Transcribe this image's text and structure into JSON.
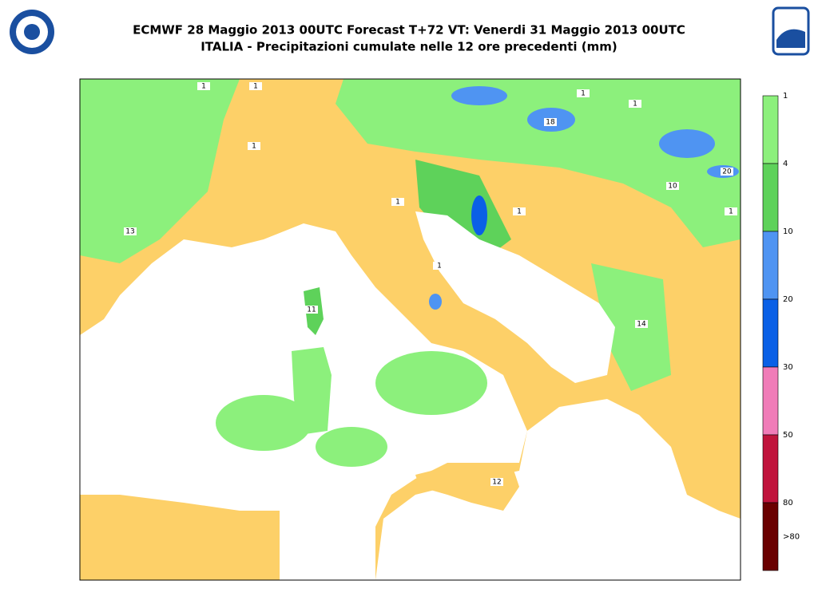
{
  "header": {
    "title": "ECMWF 28 Maggio 2013 00UTC Forecast T+72 VT: Venerdi 31 Maggio 2013 00UTC",
    "subtitle": "ITALIA - Precipitazioni cumulate nelle 12 ore precedenti (mm)"
  },
  "map": {
    "contour_labels": [
      "1",
      "1",
      "1",
      "1",
      "1",
      "1",
      "1",
      "1",
      "1",
      "13",
      "18",
      "10",
      "20",
      "11",
      "14",
      "12"
    ]
  },
  "legend": {
    "labels": [
      "1",
      "4",
      "10",
      "20",
      "30",
      "50",
      "80",
      ">80"
    ],
    "colors": [
      "#8cf07c",
      "#5ed25a",
      "#4f94f2",
      "#0a60e6",
      "#f07cb8",
      "#c0143c",
      "#6a0000"
    ]
  }
}
